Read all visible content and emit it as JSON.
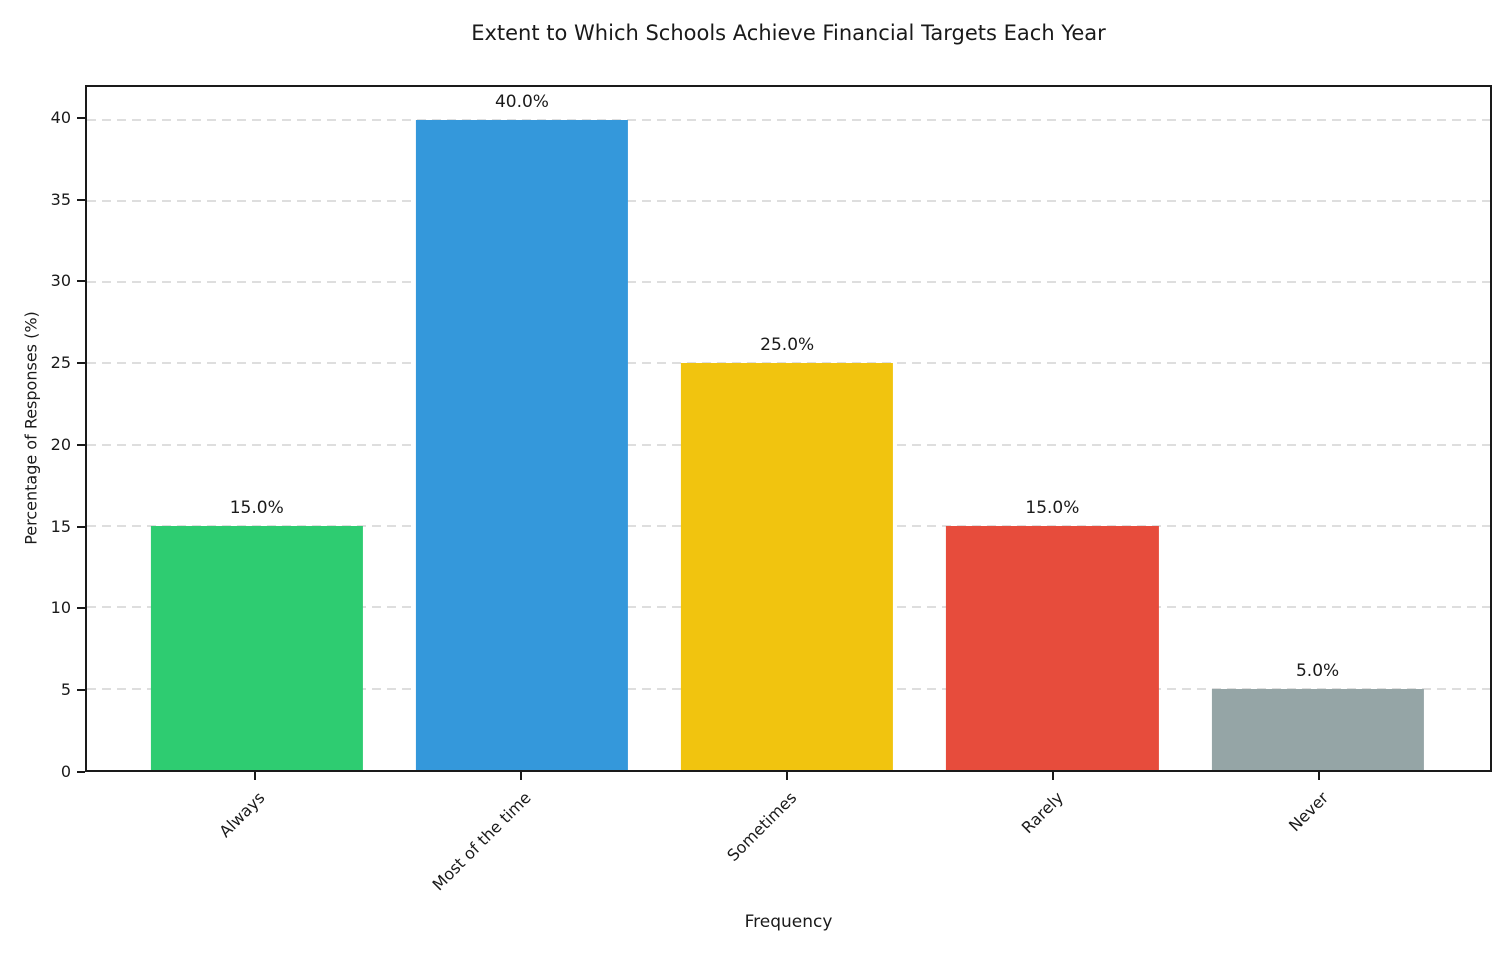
{
  "chart_data": {
    "type": "bar",
    "title": "Extent to Which Schools Achieve Financial Targets Each Year",
    "xlabel": "Frequency",
    "ylabel": "Percentage of Responses (%)",
    "categories": [
      "Always",
      "Most of the time",
      "Sometimes",
      "Rarely",
      "Never"
    ],
    "values": [
      15.0,
      40.0,
      25.0,
      15.0,
      5.0
    ],
    "bar_labels": [
      "15.0%",
      "40.0%",
      "25.0%",
      "15.0%",
      "5.0%"
    ],
    "colors": [
      "#2ecc71",
      "#3498db",
      "#f1c40f",
      "#e74c3c",
      "#95a5a6"
    ],
    "yticks": [
      0,
      5,
      10,
      15,
      20,
      25,
      30,
      35,
      40
    ],
    "ylim": [
      0,
      42
    ],
    "xlim": [
      -0.64,
      4.65
    ],
    "bar_width": 0.8,
    "xtick_rotation": 45,
    "grid": "horizontal-dashed",
    "legend": "none",
    "background_color": "#ffffff",
    "axis_color": "#1a1a1a",
    "gridline_color": "#dedede"
  }
}
